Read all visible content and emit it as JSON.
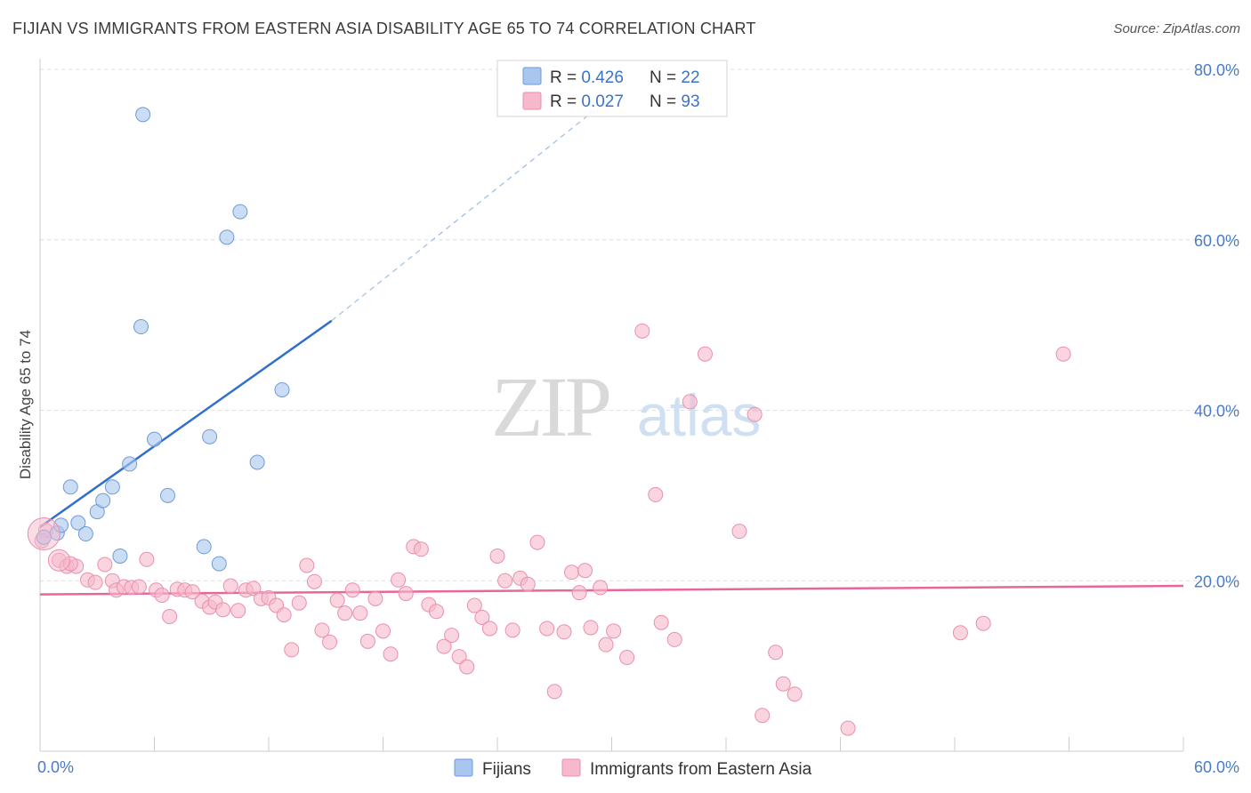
{
  "title": "FIJIAN VS IMMIGRANTS FROM EASTERN ASIA DISABILITY AGE 65 TO 74 CORRELATION CHART",
  "source": "Source: ZipAtlas.com",
  "watermark": {
    "zip": "ZIP",
    "atlas": "atlas"
  },
  "chart_data": {
    "type": "scatter",
    "xlabel": "",
    "ylabel": "Disability Age 65 to 74",
    "xlim": [
      0,
      60
    ],
    "ylim": [
      0,
      80
    ],
    "x_ticks": [
      {
        "value": 0,
        "label": "0.0%"
      },
      {
        "value": 60,
        "label": "60.0%"
      }
    ],
    "y_ticks": [
      {
        "value": 20,
        "label": "20.0%"
      },
      {
        "value": 40,
        "label": "40.0%"
      },
      {
        "value": 60,
        "label": "60.0%"
      },
      {
        "value": 80,
        "label": "80.0%"
      }
    ],
    "grid": true,
    "legend_placement": "top-center",
    "series": [
      {
        "name": "Fijians",
        "color": "#a9c6ee",
        "stroke": "#6f9bd8",
        "line_color": "#2f6fcd",
        "R": "0.426",
        "N": "22",
        "trend": {
          "x0": 0,
          "y0": 26.3,
          "x1": 15.3,
          "y1": 50.5,
          "dash_to_x": 31.5,
          "dash_to_y": 79.5
        },
        "points": [
          [
            0.2,
            25.1
          ],
          [
            0.9,
            25.6
          ],
          [
            1.1,
            26.5
          ],
          [
            1.6,
            31.0
          ],
          [
            2.0,
            26.8
          ],
          [
            2.4,
            25.5
          ],
          [
            3.0,
            28.1
          ],
          [
            3.3,
            29.4
          ],
          [
            3.8,
            31.0
          ],
          [
            4.2,
            22.9
          ],
          [
            4.7,
            33.7
          ],
          [
            5.4,
            74.7
          ],
          [
            5.3,
            49.8
          ],
          [
            6.0,
            36.6
          ],
          [
            6.7,
            30.0
          ],
          [
            8.6,
            24.0
          ],
          [
            8.9,
            36.9
          ],
          [
            9.4,
            22.0
          ],
          [
            9.8,
            60.3
          ],
          [
            10.5,
            63.3
          ],
          [
            11.4,
            33.9
          ],
          [
            12.7,
            42.4
          ]
        ]
      },
      {
        "name": "Immigrants from Eastern Asia",
        "color": "#f6b9cb",
        "stroke": "#ea8fac",
        "line_color": "#e8679a",
        "R": "0.027",
        "N": "93",
        "trend": {
          "x0": 0,
          "y0": 18.4,
          "x1": 60,
          "y1": 19.4
        },
        "points": [
          [
            0.3,
            25.9
          ],
          [
            1.0,
            22.4
          ],
          [
            1.4,
            21.7
          ],
          [
            1.9,
            21.7
          ],
          [
            2.5,
            20.1
          ],
          [
            2.9,
            19.8
          ],
          [
            3.4,
            21.9
          ],
          [
            3.8,
            20.0
          ],
          [
            4.0,
            18.9
          ],
          [
            4.4,
            19.3
          ],
          [
            4.8,
            19.2
          ],
          [
            5.2,
            19.3
          ],
          [
            5.6,
            22.5
          ],
          [
            6.1,
            18.9
          ],
          [
            6.4,
            18.3
          ],
          [
            6.8,
            15.8
          ],
          [
            7.2,
            19.0
          ],
          [
            7.6,
            18.9
          ],
          [
            8.0,
            18.7
          ],
          [
            8.5,
            17.6
          ],
          [
            8.9,
            16.9
          ],
          [
            9.2,
            17.5
          ],
          [
            9.6,
            16.6
          ],
          [
            10.0,
            19.4
          ],
          [
            10.4,
            16.5
          ],
          [
            10.8,
            18.9
          ],
          [
            11.2,
            19.1
          ],
          [
            11.6,
            17.9
          ],
          [
            12.0,
            18.0
          ],
          [
            12.4,
            17.1
          ],
          [
            12.8,
            16.0
          ],
          [
            13.2,
            11.9
          ],
          [
            13.6,
            17.4
          ],
          [
            14.0,
            21.8
          ],
          [
            14.4,
            19.9
          ],
          [
            14.8,
            14.2
          ],
          [
            15.2,
            12.8
          ],
          [
            15.6,
            17.7
          ],
          [
            16.0,
            16.2
          ],
          [
            16.4,
            18.9
          ],
          [
            16.8,
            16.2
          ],
          [
            17.2,
            12.9
          ],
          [
            17.6,
            17.9
          ],
          [
            18.0,
            14.1
          ],
          [
            18.4,
            11.4
          ],
          [
            18.8,
            20.1
          ],
          [
            19.2,
            18.5
          ],
          [
            19.6,
            24.0
          ],
          [
            20.0,
            23.7
          ],
          [
            20.4,
            17.2
          ],
          [
            20.8,
            16.4
          ],
          [
            21.2,
            12.3
          ],
          [
            21.6,
            13.6
          ],
          [
            22.0,
            11.1
          ],
          [
            22.4,
            9.9
          ],
          [
            22.8,
            17.1
          ],
          [
            23.2,
            15.7
          ],
          [
            23.6,
            14.4
          ],
          [
            24.0,
            22.9
          ],
          [
            24.4,
            20.0
          ],
          [
            24.8,
            14.2
          ],
          [
            25.2,
            20.3
          ],
          [
            25.6,
            19.6
          ],
          [
            26.1,
            24.5
          ],
          [
            26.6,
            14.4
          ],
          [
            27.0,
            7.0
          ],
          [
            27.5,
            14.0
          ],
          [
            27.9,
            21.0
          ],
          [
            28.3,
            18.6
          ],
          [
            28.6,
            21.2
          ],
          [
            28.9,
            14.5
          ],
          [
            29.4,
            19.2
          ],
          [
            29.7,
            12.5
          ],
          [
            30.1,
            14.1
          ],
          [
            30.8,
            11.0
          ],
          [
            31.6,
            49.3
          ],
          [
            32.3,
            30.1
          ],
          [
            32.6,
            15.1
          ],
          [
            33.3,
            13.1
          ],
          [
            34.1,
            41.0
          ],
          [
            34.9,
            46.6
          ],
          [
            36.7,
            25.8
          ],
          [
            37.5,
            39.5
          ],
          [
            37.9,
            4.2
          ],
          [
            38.6,
            11.6
          ],
          [
            39.0,
            7.9
          ],
          [
            39.6,
            6.7
          ],
          [
            42.4,
            2.7
          ],
          [
            48.3,
            13.9
          ],
          [
            49.5,
            15.0
          ],
          [
            53.7,
            46.6
          ],
          [
            0.1,
            24.7
          ],
          [
            1.6,
            22.0
          ]
        ]
      }
    ]
  },
  "legend": {
    "r_label": "R = ",
    "n_label": "N = "
  }
}
